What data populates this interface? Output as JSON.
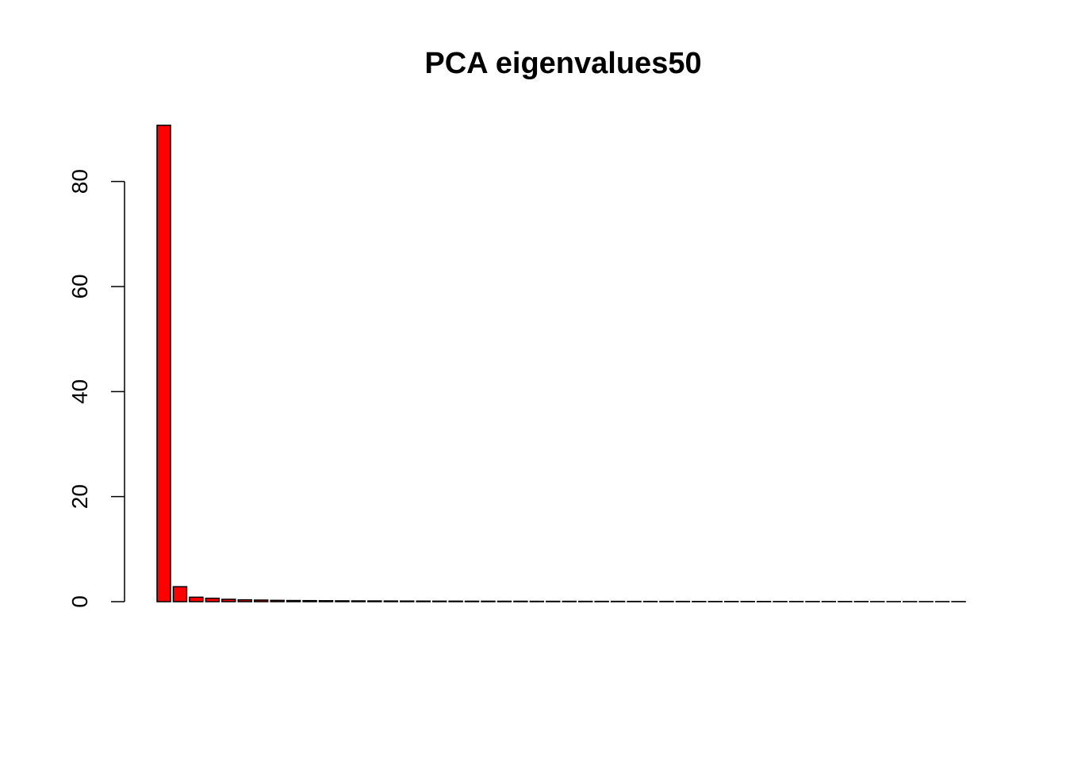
{
  "chart_data": {
    "type": "bar",
    "title": "PCA eigenvalues50",
    "xlabel": "",
    "ylabel": "",
    "ylim": [
      0,
      90.7
    ],
    "y_ticks": [
      "0",
      "20",
      "40",
      "60",
      "80"
    ],
    "values": [
      90.7,
      2.85,
      0.85,
      0.65,
      0.45,
      0.35,
      0.3,
      0.25,
      0.22,
      0.2,
      0.18,
      0.16,
      0.15,
      0.14,
      0.13,
      0.12,
      0.11,
      0.1,
      0.1,
      0.09,
      0.09,
      0.08,
      0.08,
      0.07,
      0.07,
      0.07,
      0.06,
      0.06,
      0.06,
      0.05,
      0.05,
      0.05,
      0.05,
      0.04,
      0.04,
      0.04,
      0.04,
      0.04,
      0.03,
      0.03,
      0.03,
      0.03,
      0.03,
      0.03,
      0.02,
      0.02,
      0.02,
      0.02,
      0.02,
      0.02
    ],
    "bar_color": "#ff0000",
    "bar_border_color": "#000000",
    "grid": false,
    "legend": "none"
  }
}
